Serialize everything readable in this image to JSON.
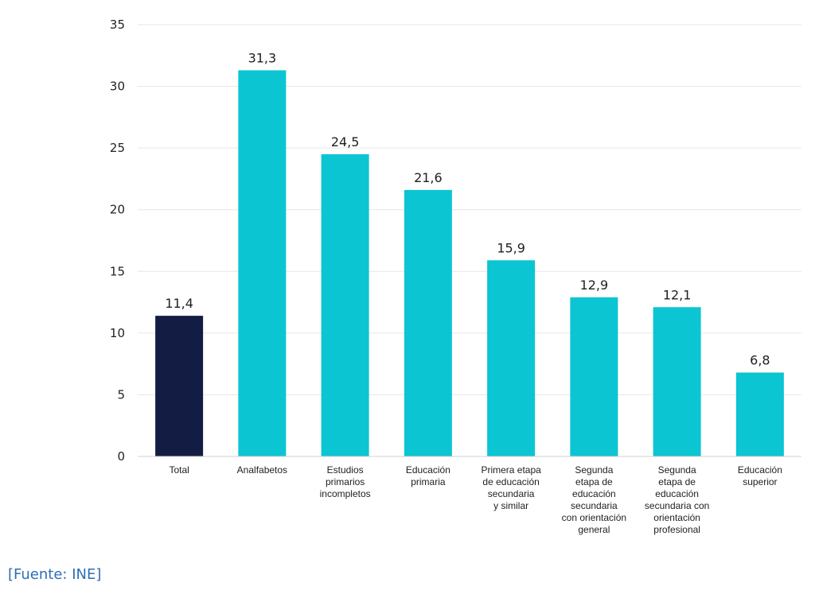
{
  "chart_data": {
    "type": "bar",
    "categories": [
      "Total",
      "Analfabetos",
      "Estudios primarios incompletos",
      "Educación primaria",
      "Primera etapa de educación secundaria y similar",
      "Segunda etapa de educación secundaria con orientación general",
      "Segunda etapa de educación secundaria con orientación profesional",
      "Educación superior"
    ],
    "category_label_lines": [
      [
        "Total"
      ],
      [
        "Analfabetos"
      ],
      [
        "Estudios",
        "primarios",
        "incompletos"
      ],
      [
        "Educación",
        "primaria"
      ],
      [
        "Primera etapa",
        "de educación",
        "secundaria",
        "y similar"
      ],
      [
        "Segunda",
        "etapa de",
        "educación",
        "secundaria",
        "con orientación",
        "general"
      ],
      [
        "Segunda",
        "etapa de",
        "educación",
        "secundaria con",
        "orientación",
        "profesional"
      ],
      [
        "Educación",
        "superior"
      ]
    ],
    "values": [
      11.4,
      31.3,
      24.5,
      21.6,
      15.9,
      12.9,
      12.1,
      6.8
    ],
    "value_labels": [
      "11,4",
      "31,3",
      "24,5",
      "21,6",
      "15,9",
      "12,9",
      "12,1",
      "6,8"
    ],
    "bar_colors": [
      "#131c43",
      "#0bc5d3",
      "#0bc5d3",
      "#0bc5d3",
      "#0bc5d3",
      "#0bc5d3",
      "#0bc5d3",
      "#0bc5d3"
    ],
    "yticks": [
      0,
      5,
      10,
      15,
      20,
      25,
      30,
      35
    ],
    "ylim": [
      0,
      35
    ],
    "grid": true,
    "legend": "none",
    "title": "",
    "xlabel": "",
    "ylabel": ""
  },
  "source": "[Fuente: INE]"
}
